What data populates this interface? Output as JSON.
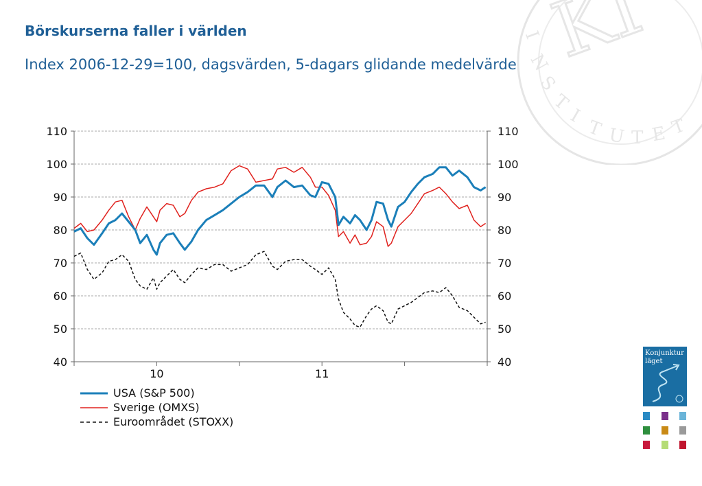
{
  "title": "Börskurserna faller i världen",
  "subtitle": "Index 2006-12-29=100, dagsvärden, 5-dagars glidande medelvärde",
  "logo": {
    "seal_text": "KONJUNKTURINSTITUTET",
    "cover_line1": "Konjunktur",
    "cover_line2": "läget"
  },
  "chart_data": {
    "type": "line",
    "y_ticks": [
      "110",
      "100",
      "90",
      "80",
      "70",
      "60",
      "50",
      "40"
    ],
    "y_ticks_right": [
      "110",
      "100",
      "90",
      "80",
      "70",
      "60",
      "50",
      "40"
    ],
    "ylim": [
      40,
      110
    ],
    "x_range": [
      2009.5,
      2012.0
    ],
    "x_tick_labels": [
      {
        "label": "10",
        "x": 2010.0
      },
      {
        "label": "11",
        "x": 2011.0
      }
    ],
    "grid": true,
    "legend_position": "bottom-left",
    "series": [
      {
        "name": "USA (S&P 500)",
        "color": "#1b7fb9",
        "style": "solid",
        "x": [
          2009.5,
          2009.54,
          2009.58,
          2009.62,
          2009.67,
          2009.71,
          2009.75,
          2009.79,
          2009.83,
          2009.87,
          2009.9,
          2009.94,
          2009.98,
          2010.0,
          2010.02,
          2010.06,
          2010.1,
          2010.14,
          2010.17,
          2010.21,
          2010.25,
          2010.3,
          2010.35,
          2010.4,
          2010.45,
          2010.5,
          2010.55,
          2010.6,
          2010.65,
          2010.7,
          2010.73,
          2010.78,
          2010.83,
          2010.88,
          2010.93,
          2010.96,
          2011.0,
          2011.04,
          2011.08,
          2011.1,
          2011.13,
          2011.17,
          2011.2,
          2011.23,
          2011.27,
          2011.3,
          2011.33,
          2011.37,
          2011.4,
          2011.42,
          2011.46,
          2011.5,
          2011.54,
          2011.58,
          2011.62,
          2011.67,
          2011.71,
          2011.75,
          2011.79,
          2011.83,
          2011.88,
          2011.92,
          2011.96,
          2011.99
        ],
        "values": [
          79.5,
          80.5,
          77.5,
          75.5,
          79.0,
          82.0,
          83.0,
          85.0,
          82.5,
          80.0,
          76.0,
          78.5,
          74.0,
          72.5,
          76.0,
          78.5,
          79.0,
          76.0,
          74.0,
          76.5,
          80.0,
          83.0,
          84.5,
          86.0,
          88.0,
          90.0,
          91.5,
          93.5,
          93.5,
          90.0,
          93.0,
          95.0,
          93.0,
          93.5,
          90.5,
          90.0,
          94.5,
          94.0,
          90.0,
          81.5,
          84.0,
          82.0,
          84.5,
          83.0,
          80.0,
          83.0,
          88.5,
          88.0,
          83.0,
          81.0,
          87.0,
          88.5,
          91.5,
          94.0,
          96.0,
          97.0,
          99.0,
          99.0,
          96.5,
          98.0,
          96.0,
          93.0,
          92.0,
          93.0
        ]
      },
      {
        "name": "Sverige (OMXS)",
        "color": "#e0221e",
        "style": "solid",
        "x": [
          2009.5,
          2009.54,
          2009.58,
          2009.62,
          2009.67,
          2009.71,
          2009.75,
          2009.79,
          2009.83,
          2009.87,
          2009.9,
          2009.94,
          2009.98,
          2010.0,
          2010.02,
          2010.06,
          2010.1,
          2010.14,
          2010.17,
          2010.21,
          2010.25,
          2010.3,
          2010.35,
          2010.4,
          2010.45,
          2010.5,
          2010.55,
          2010.6,
          2010.65,
          2010.7,
          2010.73,
          2010.78,
          2010.83,
          2010.88,
          2010.93,
          2010.96,
          2011.0,
          2011.04,
          2011.08,
          2011.1,
          2011.13,
          2011.17,
          2011.2,
          2011.23,
          2011.27,
          2011.3,
          2011.33,
          2011.37,
          2011.4,
          2011.42,
          2011.46,
          2011.5,
          2011.54,
          2011.58,
          2011.62,
          2011.67,
          2011.71,
          2011.75,
          2011.79,
          2011.83,
          2011.88,
          2011.92,
          2011.96,
          2011.99
        ],
        "values": [
          80.5,
          82.0,
          79.5,
          80.0,
          83.0,
          86.0,
          88.5,
          89.0,
          84.0,
          80.0,
          83.5,
          87.0,
          84.0,
          82.5,
          86.0,
          88.0,
          87.5,
          84.0,
          85.0,
          89.0,
          91.5,
          92.5,
          93.0,
          94.0,
          98.0,
          99.5,
          98.5,
          94.5,
          95.0,
          95.5,
          98.5,
          99.0,
          97.5,
          99.0,
          96.0,
          93.0,
          93.0,
          90.5,
          86.0,
          78.0,
          79.5,
          76.0,
          78.5,
          75.5,
          76.0,
          78.0,
          82.5,
          81.0,
          75.0,
          76.0,
          81.0,
          83.0,
          85.0,
          88.0,
          91.0,
          92.0,
          93.0,
          91.0,
          88.5,
          86.5,
          87.5,
          83.0,
          81.0,
          82.0
        ]
      },
      {
        "name": "Euroområdet (STOXX)",
        "color": "#111111",
        "style": "dashed",
        "x": [
          2009.5,
          2009.54,
          2009.58,
          2009.62,
          2009.67,
          2009.71,
          2009.75,
          2009.79,
          2009.83,
          2009.87,
          2009.9,
          2009.94,
          2009.98,
          2010.0,
          2010.02,
          2010.06,
          2010.1,
          2010.14,
          2010.17,
          2010.21,
          2010.25,
          2010.3,
          2010.35,
          2010.4,
          2010.45,
          2010.5,
          2010.55,
          2010.6,
          2010.65,
          2010.7,
          2010.73,
          2010.78,
          2010.83,
          2010.88,
          2010.93,
          2010.96,
          2011.0,
          2011.04,
          2011.08,
          2011.1,
          2011.13,
          2011.17,
          2011.2,
          2011.23,
          2011.27,
          2011.3,
          2011.33,
          2011.37,
          2011.4,
          2011.42,
          2011.46,
          2011.5,
          2011.54,
          2011.58,
          2011.62,
          2011.67,
          2011.71,
          2011.75,
          2011.79,
          2011.83,
          2011.88,
          2011.92,
          2011.96,
          2011.99
        ],
        "values": [
          72.0,
          73.0,
          68.0,
          65.0,
          67.0,
          70.5,
          71.0,
          72.5,
          70.5,
          65.0,
          63.0,
          62.0,
          65.5,
          62.0,
          64.0,
          66.0,
          68.0,
          65.0,
          64.0,
          66.5,
          68.5,
          68.0,
          69.5,
          69.5,
          67.5,
          68.5,
          69.5,
          72.5,
          73.5,
          69.0,
          68.0,
          70.5,
          71.0,
          71.0,
          69.0,
          68.0,
          66.5,
          68.5,
          65.0,
          59.0,
          55.0,
          53.0,
          51.0,
          50.5,
          54.0,
          56.0,
          57.0,
          55.5,
          52.0,
          51.5,
          56.0,
          57.0,
          58.0,
          59.5,
          61.0,
          61.5,
          61.0,
          62.5,
          60.0,
          56.5,
          55.5,
          53.5,
          51.5,
          52.0
        ]
      }
    ]
  }
}
